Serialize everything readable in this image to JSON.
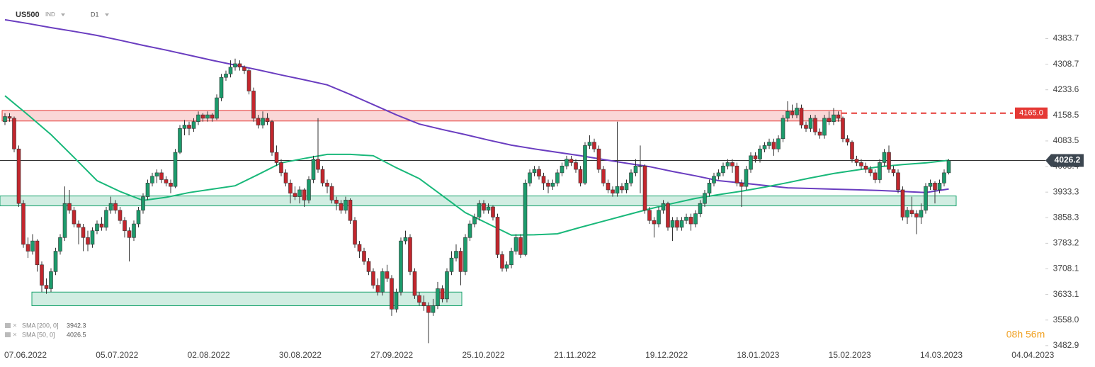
{
  "chart_data": {
    "type": "candlestick",
    "symbol": "US500",
    "instrument_type": "IND",
    "interval": "D1",
    "countdown": "08h 56m",
    "ylim": [
      3468,
      4497
    ],
    "yticks": [
      {
        "value": 3482.9,
        "label": "3482.9"
      },
      {
        "value": 3558,
        "label": "3558.0"
      },
      3633.1,
      3708.1,
      3783.2,
      3858.3,
      3933.3,
      4008.4,
      4083.5,
      4158.5,
      4233.6,
      4308.7,
      4383.7
    ],
    "xtick_labels": [
      "07.06.2022",
      "05.07.2022",
      "02.08.2022",
      "30.08.2022",
      "27.09.2022",
      "25.10.2022",
      "21.11.2022",
      "19.12.2022",
      "18.01.2023",
      "15.02.2023",
      "14.03.2023",
      "04.04.2023"
    ],
    "up_color": "#1c9b6c",
    "down_color": "#c3262d",
    "candles": [
      [
        4140,
        4165,
        4130,
        4155
      ],
      [
        4155,
        4165,
        4140,
        4150
      ],
      [
        4150,
        4155,
        4050,
        4060
      ],
      [
        4060,
        4070,
        3890,
        3900
      ],
      [
        3900,
        3910,
        3770,
        3780
      ],
      [
        3780,
        3800,
        3740,
        3760
      ],
      [
        3760,
        3810,
        3750,
        3790
      ],
      [
        3790,
        3795,
        3700,
        3720
      ],
      [
        3720,
        3730,
        3640,
        3660
      ],
      [
        3660,
        3680,
        3635,
        3650
      ],
      [
        3650,
        3710,
        3640,
        3700
      ],
      [
        3700,
        3770,
        3690,
        3760
      ],
      [
        3760,
        3810,
        3750,
        3800
      ],
      [
        3800,
        3950,
        3790,
        3900
      ],
      [
        3900,
        3940,
        3870,
        3880
      ],
      [
        3880,
        3890,
        3830,
        3840
      ],
      [
        3840,
        3850,
        3780,
        3830
      ],
      [
        3830,
        3840,
        3760,
        3800
      ],
      [
        3800,
        3820,
        3760,
        3780
      ],
      [
        3780,
        3830,
        3770,
        3820
      ],
      [
        3820,
        3850,
        3810,
        3840
      ],
      [
        3840,
        3860,
        3820,
        3830
      ],
      [
        3830,
        3890,
        3820,
        3880
      ],
      [
        3880,
        3920,
        3870,
        3900
      ],
      [
        3900,
        3910,
        3870,
        3880
      ],
      [
        3880,
        3890,
        3840,
        3850
      ],
      [
        3850,
        3860,
        3800,
        3820
      ],
      [
        3820,
        3830,
        3730,
        3800
      ],
      [
        3800,
        3850,
        3790,
        3840
      ],
      [
        3840,
        3890,
        3830,
        3880
      ],
      [
        3880,
        3930,
        3870,
        3920
      ],
      [
        3920,
        3970,
        3910,
        3960
      ],
      [
        3960,
        3990,
        3950,
        3980
      ],
      [
        3980,
        4000,
        3960,
        3990
      ],
      [
        3990,
        4000,
        3960,
        3970
      ],
      [
        3970,
        3980,
        3950,
        3960
      ],
      [
        3960,
        3970,
        3930,
        3950
      ],
      [
        3950,
        4060,
        3945,
        4050
      ],
      [
        4050,
        4130,
        4045,
        4120
      ],
      [
        4120,
        4145,
        4100,
        4130
      ],
      [
        4130,
        4140,
        4100,
        4120
      ],
      [
        4120,
        4150,
        4110,
        4140
      ],
      [
        4140,
        4170,
        4130,
        4160
      ],
      [
        4160,
        4165,
        4140,
        4150
      ],
      [
        4150,
        4170,
        4140,
        4160
      ],
      [
        4160,
        4165,
        4140,
        4150
      ],
      [
        4150,
        4220,
        4145,
        4210
      ],
      [
        4210,
        4280,
        4200,
        4270
      ],
      [
        4270,
        4290,
        4260,
        4280
      ],
      [
        4280,
        4320,
        4270,
        4300
      ],
      [
        4300,
        4325,
        4290,
        4310
      ],
      [
        4310,
        4320,
        4290,
        4300
      ],
      [
        4300,
        4305,
        4280,
        4290
      ],
      [
        4290,
        4295,
        4220,
        4230
      ],
      [
        4230,
        4240,
        4140,
        4150
      ],
      [
        4150,
        4160,
        4120,
        4130
      ],
      [
        4130,
        4170,
        4120,
        4150
      ],
      [
        4150,
        4165,
        4130,
        4140
      ],
      [
        4140,
        4145,
        4040,
        4050
      ],
      [
        4050,
        4070,
        4010,
        4020
      ],
      [
        4020,
        4030,
        3980,
        3990
      ],
      [
        3990,
        4000,
        3950,
        3960
      ],
      [
        3960,
        3970,
        3900,
        3930
      ],
      [
        3930,
        3950,
        3910,
        3920
      ],
      [
        3920,
        3950,
        3900,
        3940
      ],
      [
        3940,
        3945,
        3890,
        3910
      ],
      [
        3910,
        3980,
        3900,
        3970
      ],
      [
        3970,
        4040,
        3960,
        4030
      ],
      [
        4030,
        4150,
        3990,
        4000
      ],
      [
        4000,
        4010,
        3950,
        3960
      ],
      [
        3960,
        3970,
        3930,
        3950
      ],
      [
        3950,
        3960,
        3900,
        3910
      ],
      [
        3910,
        3920,
        3880,
        3900
      ],
      [
        3900,
        3910,
        3870,
        3880
      ],
      [
        3880,
        3920,
        3870,
        3910
      ],
      [
        3910,
        3915,
        3840,
        3850
      ],
      [
        3850,
        3860,
        3770,
        3780
      ],
      [
        3780,
        3790,
        3740,
        3760
      ],
      [
        3760,
        3770,
        3720,
        3730
      ],
      [
        3730,
        3740,
        3690,
        3700
      ],
      [
        3700,
        3710,
        3650,
        3660
      ],
      [
        3660,
        3680,
        3630,
        3640
      ],
      [
        3640,
        3710,
        3630,
        3700
      ],
      [
        3700,
        3720,
        3670,
        3680
      ],
      [
        3680,
        3690,
        3570,
        3590
      ],
      [
        3590,
        3650,
        3580,
        3640
      ],
      [
        3640,
        3800,
        3630,
        3790
      ],
      [
        3790,
        3820,
        3780,
        3800
      ],
      [
        3800,
        3810,
        3690,
        3700
      ],
      [
        3700,
        3710,
        3620,
        3630
      ],
      [
        3630,
        3640,
        3600,
        3610
      ],
      [
        3610,
        3630,
        3585,
        3600
      ],
      [
        3600,
        3610,
        3490,
        3580
      ],
      [
        3580,
        3620,
        3570,
        3600
      ],
      [
        3600,
        3670,
        3590,
        3650
      ],
      [
        3650,
        3660,
        3610,
        3620
      ],
      [
        3620,
        3710,
        3610,
        3700
      ],
      [
        3700,
        3760,
        3690,
        3740
      ],
      [
        3740,
        3780,
        3730,
        3760
      ],
      [
        3760,
        3770,
        3660,
        3700
      ],
      [
        3700,
        3810,
        3690,
        3800
      ],
      [
        3800,
        3850,
        3790,
        3840
      ],
      [
        3840,
        3870,
        3830,
        3860
      ],
      [
        3860,
        3910,
        3850,
        3900
      ],
      [
        3900,
        3910,
        3870,
        3880
      ],
      [
        3880,
        3900,
        3870,
        3890
      ],
      [
        3890,
        3895,
        3850,
        3860
      ],
      [
        3860,
        3870,
        3740,
        3750
      ],
      [
        3750,
        3760,
        3700,
        3710
      ],
      [
        3710,
        3730,
        3700,
        3720
      ],
      [
        3720,
        3770,
        3710,
        3760
      ],
      [
        3760,
        3810,
        3750,
        3800
      ],
      [
        3800,
        3810,
        3740,
        3750
      ],
      [
        3750,
        3970,
        3745,
        3960
      ],
      [
        3960,
        4000,
        3950,
        3990
      ],
      [
        3990,
        4010,
        3980,
        4000
      ],
      [
        4000,
        4010,
        3970,
        3980
      ],
      [
        3980,
        3990,
        3940,
        3960
      ],
      [
        3960,
        3970,
        3930,
        3950
      ],
      [
        3950,
        3970,
        3940,
        3960
      ],
      [
        3960,
        4000,
        3950,
        3990
      ],
      [
        3990,
        4020,
        3980,
        4010
      ],
      [
        4010,
        4040,
        4000,
        4030
      ],
      [
        4030,
        4040,
        4010,
        4020
      ],
      [
        4020,
        4030,
        3990,
        4000
      ],
      [
        4000,
        4010,
        3950,
        3960
      ],
      [
        3960,
        4080,
        3955,
        4070
      ],
      [
        4070,
        4100,
        4060,
        4080
      ],
      [
        4080,
        4090,
        4050,
        4060
      ],
      [
        4060,
        4070,
        3990,
        4000
      ],
      [
        4000,
        4010,
        3950,
        3960
      ],
      [
        3960,
        3970,
        3930,
        3940
      ],
      [
        3940,
        3950,
        3920,
        3930
      ],
      [
        3930,
        4140,
        3920,
        3950
      ],
      [
        3950,
        3960,
        3930,
        3940
      ],
      [
        3940,
        3970,
        3930,
        3960
      ],
      [
        3960,
        4000,
        3950,
        3990
      ],
      [
        3990,
        4030,
        3980,
        4010
      ],
      [
        4010,
        4070,
        3930,
        4010
      ],
      [
        4010,
        4015,
        3870,
        3880
      ],
      [
        3880,
        3890,
        3840,
        3850
      ],
      [
        3850,
        3860,
        3800,
        3840
      ],
      [
        3840,
        3890,
        3830,
        3880
      ],
      [
        3880,
        3910,
        3870,
        3900
      ],
      [
        3900,
        3905,
        3820,
        3830
      ],
      [
        3830,
        3860,
        3790,
        3850
      ],
      [
        3850,
        3860,
        3820,
        3830
      ],
      [
        3830,
        3860,
        3820,
        3850
      ],
      [
        3850,
        3870,
        3840,
        3860
      ],
      [
        3860,
        3870,
        3820,
        3840
      ],
      [
        3840,
        3880,
        3830,
        3870
      ],
      [
        3870,
        3910,
        3860,
        3900
      ],
      [
        3900,
        3940,
        3890,
        3930
      ],
      [
        3930,
        3970,
        3920,
        3960
      ],
      [
        3960,
        3990,
        3950,
        3980
      ],
      [
        3980,
        4000,
        3970,
        3990
      ],
      [
        3990,
        4020,
        3980,
        4010
      ],
      [
        4010,
        4030,
        4000,
        4020
      ],
      [
        4020,
        4030,
        3990,
        4010
      ],
      [
        4010,
        4020,
        3950,
        3960
      ],
      [
        3960,
        3970,
        3890,
        3950
      ],
      [
        3950,
        4010,
        3940,
        4000
      ],
      [
        4000,
        4050,
        3990,
        4040
      ],
      [
        4040,
        4050,
        4020,
        4030
      ],
      [
        4030,
        4070,
        4020,
        4060
      ],
      [
        4060,
        4080,
        4050,
        4070
      ],
      [
        4070,
        4090,
        4060,
        4080
      ],
      [
        4080,
        4090,
        4040,
        4060
      ],
      [
        4060,
        4100,
        4050,
        4090
      ],
      [
        4090,
        4160,
        4080,
        4150
      ],
      [
        4150,
        4200,
        4140,
        4170
      ],
      [
        4170,
        4190,
        4150,
        4160
      ],
      [
        4160,
        4195,
        4150,
        4180
      ],
      [
        4180,
        4190,
        4120,
        4130
      ],
      [
        4130,
        4140,
        4110,
        4120
      ],
      [
        4120,
        4160,
        4110,
        4150
      ],
      [
        4150,
        4160,
        4100,
        4110
      ],
      [
        4110,
        4120,
        4090,
        4100
      ],
      [
        4100,
        4160,
        4090,
        4150
      ],
      [
        4150,
        4170,
        4130,
        4140
      ],
      [
        4140,
        4180,
        4130,
        4160
      ],
      [
        4160,
        4170,
        4140,
        4150
      ],
      [
        4150,
        4155,
        4080,
        4090
      ],
      [
        4090,
        4100,
        4070,
        4080
      ],
      [
        4080,
        4085,
        4020,
        4030
      ],
      [
        4030,
        4040,
        4010,
        4020
      ],
      [
        4020,
        4030,
        4000,
        4010
      ],
      [
        4010,
        4020,
        3990,
        4000
      ],
      [
        4000,
        4010,
        3980,
        3990
      ],
      [
        3990,
        4000,
        3960,
        3970
      ],
      [
        3970,
        4030,
        3960,
        4020
      ],
      [
        4020,
        4060,
        4010,
        4050
      ],
      [
        4050,
        4070,
        3990,
        4000
      ],
      [
        4000,
        4010,
        3980,
        3990
      ],
      [
        3990,
        4000,
        3930,
        3940
      ],
      [
        3940,
        3950,
        3850,
        3860
      ],
      [
        3860,
        3890,
        3840,
        3880
      ],
      [
        3880,
        3920,
        3860,
        3870
      ],
      [
        3870,
        3880,
        3810,
        3860
      ],
      [
        3860,
        3900,
        3840,
        3880
      ],
      [
        3880,
        3960,
        3870,
        3950
      ],
      [
        3950,
        3970,
        3940,
        3960
      ],
      [
        3960,
        3965,
        3900,
        3940
      ],
      [
        3940,
        3970,
        3930,
        3960
      ],
      [
        3960,
        4000,
        3950,
        3990
      ],
      [
        3990,
        4030,
        3985,
        4026.2
      ]
    ],
    "indicators": [
      {
        "label": "SMA [200, 0]",
        "value": 3942.3,
        "color": "#6a3dc0",
        "values": [
          4439,
          4428,
          4416,
          4405,
          4393,
          4379,
          4364,
          4350,
          4335,
          4320,
          4306,
          4292,
          4277,
          4263,
          4248,
          4220,
          4190,
          4160,
          4133,
          4117,
          4102,
          4086,
          4071,
          4060,
          4050,
          4040,
          4029,
          4018,
          4008,
          3994,
          3981,
          3967,
          3960,
          3953,
          3946,
          3944,
          3942,
          3940,
          3938,
          3935,
          3932,
          3942.3
        ]
      },
      {
        "label": "SMA [50, 0]",
        "value": 4026.5,
        "color": "#19b87a",
        "values": [
          4216,
          4160,
          4102,
          4035,
          3967,
          3935,
          3909,
          3918,
          3932,
          3942,
          3952,
          3985,
          4019,
          4032,
          4044,
          4044,
          4040,
          4005,
          3973,
          3923,
          3873,
          3840,
          3807,
          3808,
          3811,
          3830,
          3848,
          3866,
          3884,
          3900,
          3915,
          3926,
          3936,
          3948,
          3961,
          3975,
          3988,
          3998,
          4008,
          4014,
          4019,
          4026.5
        ]
      }
    ],
    "zones": [
      {
        "low": 4142,
        "high": 4173,
        "color": "#e53935"
      },
      {
        "low": 3893,
        "high": 3922,
        "color": "#1aa36e"
      },
      {
        "low": 3600,
        "high": 3640,
        "color": "#1aa36e"
      }
    ],
    "level": {
      "value": 4165,
      "label": "4165.0",
      "color": "#e53935"
    },
    "last_price": 4026.2
  }
}
